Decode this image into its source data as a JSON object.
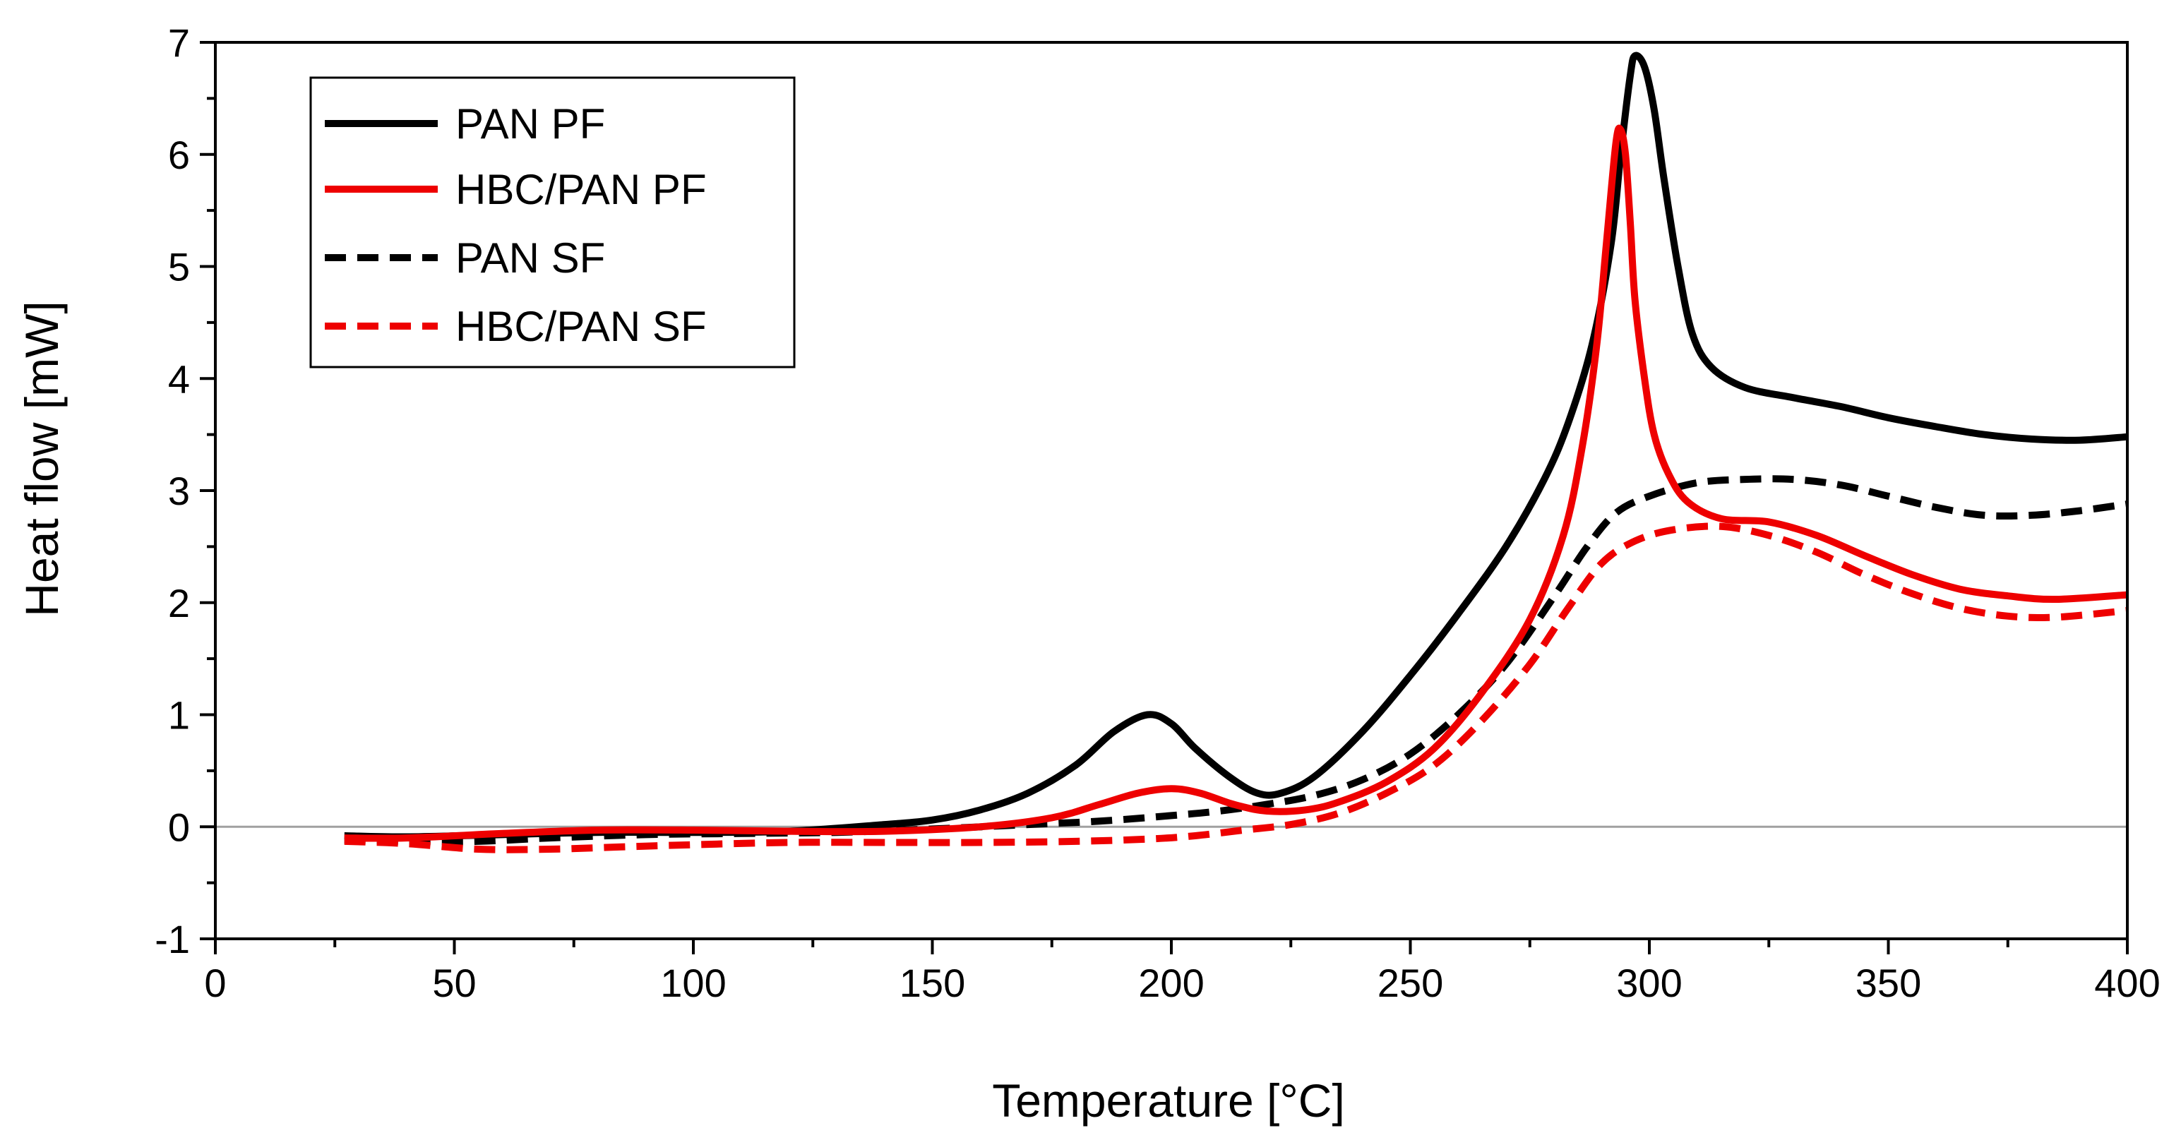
{
  "chart_data": {
    "type": "line",
    "title": "",
    "xlabel": "Temperature [°C]",
    "ylabel": "Heat flow [mW]",
    "xlim": [
      0,
      400
    ],
    "ylim": [
      -1,
      7
    ],
    "xticks": [
      0,
      50,
      100,
      150,
      200,
      250,
      300,
      350,
      400
    ],
    "yticks": [
      -1,
      0,
      1,
      2,
      3,
      4,
      5,
      6,
      7
    ],
    "reference_line_y": 0,
    "legend_position": "top-left",
    "series": [
      {
        "name": "PAN PF",
        "color": "#000000",
        "style": "solid",
        "points": [
          [
            27,
            -0.08
          ],
          [
            40,
            -0.09
          ],
          [
            60,
            -0.07
          ],
          [
            80,
            -0.05
          ],
          [
            100,
            -0.05
          ],
          [
            120,
            -0.04
          ],
          [
            140,
            0.02
          ],
          [
            150,
            0.06
          ],
          [
            160,
            0.15
          ],
          [
            170,
            0.3
          ],
          [
            180,
            0.55
          ],
          [
            188,
            0.85
          ],
          [
            195,
            1.0
          ],
          [
            200,
            0.92
          ],
          [
            205,
            0.7
          ],
          [
            212,
            0.45
          ],
          [
            218,
            0.3
          ],
          [
            223,
            0.3
          ],
          [
            230,
            0.45
          ],
          [
            240,
            0.85
          ],
          [
            250,
            1.35
          ],
          [
            260,
            1.9
          ],
          [
            270,
            2.5
          ],
          [
            278,
            3.1
          ],
          [
            283,
            3.6
          ],
          [
            288,
            4.3
          ],
          [
            292,
            5.2
          ],
          [
            294,
            6.0
          ],
          [
            296,
            6.7
          ],
          [
            297,
            6.88
          ],
          [
            299,
            6.78
          ],
          [
            301,
            6.4
          ],
          [
            303,
            5.8
          ],
          [
            306,
            5.0
          ],
          [
            309,
            4.4
          ],
          [
            313,
            4.1
          ],
          [
            320,
            3.92
          ],
          [
            330,
            3.83
          ],
          [
            340,
            3.75
          ],
          [
            350,
            3.65
          ],
          [
            360,
            3.57
          ],
          [
            370,
            3.5
          ],
          [
            380,
            3.46
          ],
          [
            390,
            3.45
          ],
          [
            400,
            3.48
          ]
        ]
      },
      {
        "name": "HBC/PAN PF",
        "color": "#ee0000",
        "style": "solid",
        "points": [
          [
            27,
            -0.1
          ],
          [
            40,
            -0.1
          ],
          [
            60,
            -0.06
          ],
          [
            80,
            -0.03
          ],
          [
            100,
            -0.03
          ],
          [
            120,
            -0.04
          ],
          [
            140,
            -0.04
          ],
          [
            160,
            0.0
          ],
          [
            175,
            0.08
          ],
          [
            185,
            0.2
          ],
          [
            193,
            0.3
          ],
          [
            200,
            0.34
          ],
          [
            206,
            0.3
          ],
          [
            213,
            0.2
          ],
          [
            220,
            0.14
          ],
          [
            228,
            0.15
          ],
          [
            235,
            0.22
          ],
          [
            245,
            0.4
          ],
          [
            255,
            0.7
          ],
          [
            265,
            1.2
          ],
          [
            275,
            1.85
          ],
          [
            282,
            2.6
          ],
          [
            286,
            3.4
          ],
          [
            289,
            4.3
          ],
          [
            291,
            5.2
          ],
          [
            293,
            6.1
          ],
          [
            294,
            6.22
          ],
          [
            295,
            6.0
          ],
          [
            296,
            5.4
          ],
          [
            297,
            4.7
          ],
          [
            299,
            4.0
          ],
          [
            301,
            3.5
          ],
          [
            304,
            3.15
          ],
          [
            308,
            2.9
          ],
          [
            315,
            2.75
          ],
          [
            325,
            2.72
          ],
          [
            335,
            2.6
          ],
          [
            345,
            2.42
          ],
          [
            355,
            2.25
          ],
          [
            365,
            2.12
          ],
          [
            375,
            2.06
          ],
          [
            385,
            2.03
          ],
          [
            400,
            2.07
          ]
        ]
      },
      {
        "name": "PAN SF",
        "color": "#000000",
        "style": "dashed",
        "points": [
          [
            27,
            -0.12
          ],
          [
            40,
            -0.13
          ],
          [
            55,
            -0.13
          ],
          [
            70,
            -0.1
          ],
          [
            90,
            -0.07
          ],
          [
            110,
            -0.06
          ],
          [
            130,
            -0.05
          ],
          [
            150,
            -0.02
          ],
          [
            170,
            0.02
          ],
          [
            185,
            0.05
          ],
          [
            200,
            0.1
          ],
          [
            210,
            0.14
          ],
          [
            220,
            0.2
          ],
          [
            230,
            0.28
          ],
          [
            240,
            0.42
          ],
          [
            250,
            0.65
          ],
          [
            260,
            1.0
          ],
          [
            270,
            1.45
          ],
          [
            280,
            2.05
          ],
          [
            287,
            2.5
          ],
          [
            293,
            2.8
          ],
          [
            300,
            2.95
          ],
          [
            310,
            3.07
          ],
          [
            320,
            3.1
          ],
          [
            330,
            3.1
          ],
          [
            340,
            3.05
          ],
          [
            350,
            2.95
          ],
          [
            360,
            2.85
          ],
          [
            370,
            2.78
          ],
          [
            380,
            2.78
          ],
          [
            390,
            2.82
          ],
          [
            400,
            2.88
          ]
        ]
      },
      {
        "name": "HBC/PAN SF",
        "color": "#ee0000",
        "style": "dashed",
        "points": [
          [
            27,
            -0.13
          ],
          [
            40,
            -0.15
          ],
          [
            55,
            -0.2
          ],
          [
            70,
            -0.2
          ],
          [
            85,
            -0.18
          ],
          [
            100,
            -0.16
          ],
          [
            120,
            -0.14
          ],
          [
            140,
            -0.14
          ],
          [
            160,
            -0.14
          ],
          [
            180,
            -0.13
          ],
          [
            195,
            -0.11
          ],
          [
            205,
            -0.08
          ],
          [
            215,
            -0.03
          ],
          [
            225,
            0.02
          ],
          [
            235,
            0.12
          ],
          [
            245,
            0.3
          ],
          [
            255,
            0.55
          ],
          [
            265,
            0.95
          ],
          [
            275,
            1.45
          ],
          [
            283,
            1.95
          ],
          [
            290,
            2.35
          ],
          [
            297,
            2.55
          ],
          [
            305,
            2.65
          ],
          [
            315,
            2.68
          ],
          [
            325,
            2.6
          ],
          [
            335,
            2.45
          ],
          [
            345,
            2.25
          ],
          [
            355,
            2.08
          ],
          [
            365,
            1.95
          ],
          [
            375,
            1.88
          ],
          [
            385,
            1.87
          ],
          [
            400,
            1.93
          ]
        ]
      }
    ]
  }
}
